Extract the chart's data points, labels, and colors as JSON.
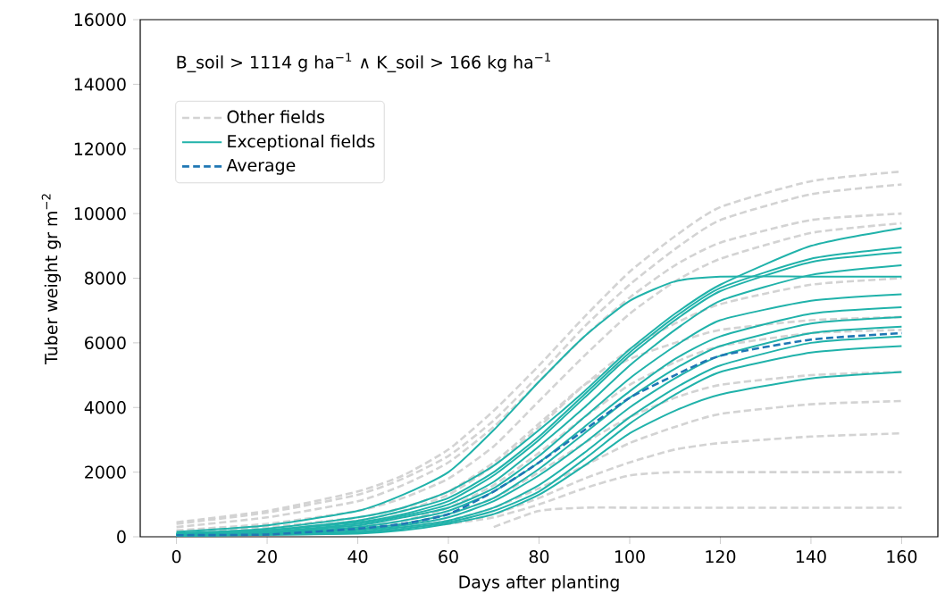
{
  "chart_data": {
    "type": "line",
    "xlabel": "Days after planting",
    "ylabel": "Tuber weight gr m$^{−2}$",
    "annotations": [
      "B_soil > 1114 g ha$^{−1}$ ∧ K_soil > 166 kg ha$^{−1}$"
    ],
    "x": [
      0,
      20,
      40,
      50,
      60,
      70,
      80,
      90,
      100,
      110,
      120,
      140,
      160
    ],
    "xlim": [
      -8,
      168
    ],
    "ylim": [
      0,
      16000
    ],
    "xticks": [
      0,
      20,
      40,
      60,
      80,
      100,
      120,
      140,
      160
    ],
    "yticks": [
      0,
      2000,
      4000,
      6000,
      8000,
      10000,
      12000,
      14000,
      16000
    ],
    "grid": false,
    "legend": "top left",
    "series": [
      {
        "name": "Other fields",
        "color": "#d3d3d3",
        "line_style": "dashed",
        "values": [
          450,
          800,
          1400,
          1900,
          2700,
          3900,
          5300,
          6800,
          8200,
          9300,
          10200,
          11000,
          11300
        ]
      },
      {
        "color": "#d3d3d3",
        "line_style": "dashed",
        "values": [
          400,
          750,
          1300,
          1800,
          2500,
          3600,
          5000,
          6500,
          7800,
          8900,
          9800,
          10600,
          10900
        ]
      },
      {
        "color": "#d3d3d3",
        "line_style": "dashed",
        "values": [
          300,
          600,
          1100,
          1600,
          2300,
          3400,
          4800,
          6200,
          7400,
          8400,
          9100,
          9800,
          10000
        ]
      },
      {
        "color": "#d3d3d3",
        "line_style": "dashed",
        "values": [
          200,
          400,
          800,
          1200,
          1800,
          2800,
          4200,
          5600,
          6900,
          7900,
          8600,
          9400,
          9700
        ]
      },
      {
        "color": "#d3d3d3",
        "line_style": "dashed",
        "values": [
          100,
          200,
          500,
          800,
          1300,
          2200,
          3400,
          4700,
          5800,
          6600,
          7200,
          7800,
          8000
        ]
      },
      {
        "color": "#d3d3d3",
        "line_style": "dashed",
        "values": [
          150,
          300,
          600,
          900,
          1400,
          2300,
          3500,
          4700,
          5500,
          6000,
          6400,
          6700,
          6800
        ]
      },
      {
        "color": "#d3d3d3",
        "line_style": "dashed",
        "values": [
          50,
          100,
          300,
          500,
          900,
          1600,
          2600,
          3700,
          4700,
          5400,
          5900,
          6300,
          6400
        ]
      },
      {
        "color": "#d3d3d3",
        "line_style": "dashed",
        "values": [
          50,
          100,
          200,
          400,
          700,
          1200,
          2000,
          2900,
          3700,
          4300,
          4700,
          5000,
          5100
        ]
      },
      {
        "color": "#d3d3d3",
        "line_style": "dashed",
        "values": [
          50,
          100,
          200,
          300,
          500,
          900,
          1500,
          2200,
          2900,
          3400,
          3800,
          4100,
          4200
        ]
      },
      {
        "color": "#d3d3d3",
        "line_style": "dashed",
        "values": [
          50,
          100,
          200,
          300,
          400,
          700,
          1200,
          1800,
          2300,
          2700,
          2900,
          3100,
          3200
        ]
      },
      {
        "color": "#d3d3d3",
        "line_style": "dashed",
        "values": [
          50,
          100,
          200,
          300,
          400,
          600,
          1000,
          1500,
          1900,
          2000,
          2000,
          2000,
          2000
        ]
      },
      {
        "color": "#d3d3d3",
        "line_style": "dashed",
        "values": [
          null,
          null,
          null,
          null,
          null,
          300,
          800,
          900,
          900,
          900,
          900,
          900,
          900
        ]
      },
      {
        "name": "Exceptional fields",
        "color": "#20b2aa",
        "line_style": "solid",
        "values": [
          150,
          350,
          800,
          1300,
          2000,
          3300,
          4800,
          6200,
          7300,
          7900,
          8050,
          8050,
          8050
        ]
      },
      {
        "color": "#20b2aa",
        "line_style": "solid",
        "values": [
          100,
          250,
          600,
          900,
          1400,
          2200,
          3300,
          4500,
          5800,
          6900,
          7800,
          9000,
          9550
        ]
      },
      {
        "color": "#20b2aa",
        "line_style": "solid",
        "values": [
          100,
          200,
          500,
          800,
          1200,
          2000,
          3100,
          4400,
          5700,
          6800,
          7700,
          8600,
          8950
        ]
      },
      {
        "color": "#20b2aa",
        "line_style": "solid",
        "values": [
          100,
          200,
          450,
          700,
          1100,
          1900,
          3000,
          4300,
          5600,
          6700,
          7600,
          8500,
          8800
        ]
      },
      {
        "color": "#20b2aa",
        "line_style": "solid",
        "values": [
          80,
          150,
          400,
          650,
          1000,
          1700,
          2800,
          4000,
          5300,
          6400,
          7300,
          8100,
          8400
        ]
      },
      {
        "color": "#20b2aa",
        "line_style": "solid",
        "values": [
          80,
          150,
          350,
          600,
          900,
          1500,
          2500,
          3700,
          4900,
          5900,
          6700,
          7300,
          7500
        ]
      },
      {
        "color": "#20b2aa",
        "line_style": "solid",
        "values": [
          60,
          120,
          300,
          500,
          800,
          1400,
          2300,
          3400,
          4500,
          5500,
          6200,
          6900,
          7100
        ]
      },
      {
        "color": "#20b2aa",
        "line_style": "solid",
        "values": [
          50,
          100,
          250,
          400,
          700,
          1200,
          2100,
          3200,
          4300,
          5200,
          5900,
          6600,
          6800
        ]
      },
      {
        "color": "#20b2aa",
        "line_style": "solid",
        "values": [
          50,
          100,
          200,
          350,
          600,
          1100,
          1900,
          2900,
          4000,
          4900,
          5600,
          6300,
          6500
        ]
      },
      {
        "color": "#20b2aa",
        "line_style": "solid",
        "values": [
          40,
          80,
          150,
          300,
          500,
          900,
          1600,
          2600,
          3700,
          4600,
          5300,
          6000,
          6200
        ]
      },
      {
        "color": "#20b2aa",
        "line_style": "solid",
        "values": [
          30,
          60,
          120,
          250,
          450,
          800,
          1400,
          2400,
          3500,
          4400,
          5100,
          5700,
          5900
        ]
      },
      {
        "color": "#20b2aa",
        "line_style": "solid",
        "values": [
          30,
          60,
          100,
          200,
          400,
          700,
          1300,
          2200,
          3200,
          3900,
          4400,
          4900,
          5100
        ]
      },
      {
        "name": "Average",
        "color": "#1f77b4",
        "line_style": "dashed",
        "values": [
          50,
          70,
          250,
          400,
          700,
          1400,
          2300,
          3300,
          4300,
          5000,
          5600,
          6100,
          6300
        ]
      }
    ]
  }
}
